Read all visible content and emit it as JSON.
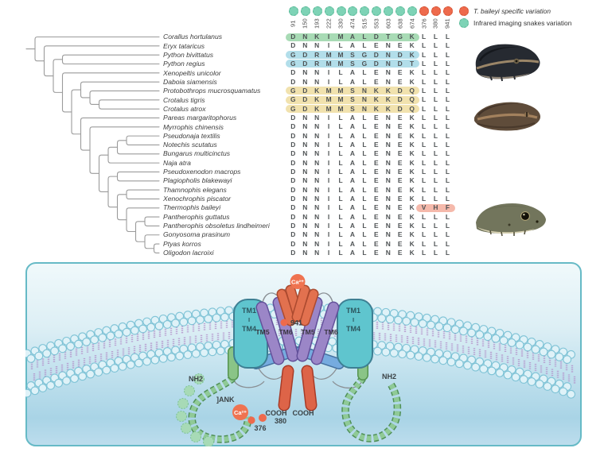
{
  "legend": {
    "items": [
      {
        "label": "T. baileyi specific variation",
        "color": "#ee6a4c",
        "italic": true
      },
      {
        "label": "Infrared imaging snakes variation",
        "color": "#7ed3b6",
        "italic": false
      }
    ]
  },
  "alignment": {
    "positions": [
      "91",
      "150",
      "193",
      "222",
      "330",
      "474",
      "515",
      "553",
      "603",
      "638",
      "674",
      "376",
      "380",
      "941"
    ],
    "position_groups": [
      "infrared",
      "infrared",
      "infrared",
      "infrared",
      "infrared",
      "infrared",
      "infrared",
      "infrared",
      "infrared",
      "infrared",
      "infrared",
      "specific",
      "specific",
      "specific"
    ],
    "highlight_colors": {
      "green": "#a8dbb5",
      "blue": "#b2deea",
      "yellow": "#f1e2ae",
      "pink": "#f5b9ab"
    },
    "rows": [
      {
        "species": "Corallus hortulanus",
        "residues": "DNKIMALDTGKLLL",
        "highlight": "green",
        "span": [
          0,
          10
        ]
      },
      {
        "species": "Eryx tataricus",
        "residues": "DNNILALENEKLLL",
        "highlight": null,
        "span": null
      },
      {
        "species": "Python bivittatus",
        "residues": "GDRMMSGDNDKLLL",
        "highlight": "blue",
        "span": [
          0,
          10
        ]
      },
      {
        "species": "Python regius",
        "residues": "GDRMMSGDNDTLLL",
        "highlight": "blue",
        "span": [
          0,
          10
        ]
      },
      {
        "species": "Xenopeltis unicolor",
        "residues": "DNNILALENEKLLL",
        "highlight": null,
        "span": null
      },
      {
        "species": "Daboia siamensis",
        "residues": "DNNILALENEKLLL",
        "highlight": null,
        "span": null
      },
      {
        "species": "Protobothrops mucrosquamatus",
        "residues": "GDKMMSNKKDQLLL",
        "highlight": "yellow",
        "span": [
          0,
          10
        ]
      },
      {
        "species": "Crotalus tigris",
        "residues": "GDKMMSNKKDQLLL",
        "highlight": "yellow",
        "span": [
          0,
          10
        ]
      },
      {
        "species": "Crotalus atrox",
        "residues": "GDKMMSNKKDQLLL",
        "highlight": "yellow",
        "span": [
          0,
          10
        ]
      },
      {
        "species": "Pareas margaritophorus",
        "residues": "DNNILALENEKLLL",
        "highlight": null,
        "span": null
      },
      {
        "species": "Myrrophis chinensis",
        "residues": "DNNILALENEKLLL",
        "highlight": null,
        "span": null
      },
      {
        "species": "Pseudonaja textilis",
        "residues": "DNNILALENEKLLL",
        "highlight": null,
        "span": null
      },
      {
        "species": "Notechis scutatus",
        "residues": "DNNILALENEKLLL",
        "highlight": null,
        "span": null
      },
      {
        "species": "Bungarus multicinctus",
        "residues": "DNNILALENEKLLL",
        "highlight": null,
        "span": null
      },
      {
        "species": "Naja atra",
        "residues": "DNNILALENEKLLL",
        "highlight": null,
        "span": null
      },
      {
        "species": "Pseudoxenodon macrops",
        "residues": "DNNILALENEKLLL",
        "highlight": null,
        "span": null
      },
      {
        "species": "Plagiopholis blakewayi",
        "residues": "DNNILALENEKLLL",
        "highlight": null,
        "span": null
      },
      {
        "species": "Thamnophis elegans",
        "residues": "DNNILALENEKLLL",
        "highlight": null,
        "span": null
      },
      {
        "species": "Xenochrophis piscator",
        "residues": "DNNILALENEKLLL",
        "highlight": null,
        "span": null
      },
      {
        "species": "Thermophis baileyi",
        "residues": "DNNILALENEKVHF",
        "highlight": "pink",
        "span": [
          11,
          13
        ]
      },
      {
        "species": "Pantherophis guttatus",
        "residues": "DNNILALENEKLLL",
        "highlight": null,
        "span": null
      },
      {
        "species": "Pantherophis obsoletus lindheimeri",
        "residues": "DNNILALENEKLLL",
        "highlight": null,
        "span": null
      },
      {
        "species": "Gonyosoma prasinum",
        "residues": "DNNILALENEKLLL",
        "highlight": null,
        "span": null
      },
      {
        "species": "Ptyas korros",
        "residues": "DNNILALENEKLLL",
        "highlight": null,
        "span": null
      },
      {
        "species": "Oligodon lacroixi",
        "residues": "DNNILALENEKLLL",
        "highlight": null,
        "span": null
      }
    ]
  },
  "phylogeny": [
    0,
    [
      1,
      [
        [
          2,
          3
        ],
        [
          4,
          [
            [
              5,
              [
                6,
                [
                  7,
                  8
                ]
              ]
            ],
            [
              9,
              [
                10,
                [
                  [
                    [
                      [
                        11,
                        12
                      ],
                      13
                    ],
                    14
                  ],
                  [
                    [
                      15,
                      16
                    ],
                    [
                      [
                        17,
                        18
                      ],
                      [
                        19,
                        [
                          [
                            20,
                            21
                          ],
                          [
                            22,
                            [
                              23,
                              24
                            ]
                          ]
                        ]
                      ]
                    ]
                  ]
                ]
              ]
            ]
          ]
        ]
      ]
    ]
  ],
  "diagram": {
    "labels": {
      "ca": "Ca²⁺",
      "p941": "941",
      "tm1": "TM1",
      "sep": "I",
      "tm4": "TM4",
      "tm5": "TM5",
      "tm6": "TM6",
      "cooh": "COOH",
      "nh2": "NH2",
      "ank": "]ANK",
      "p376": "376",
      "p380": "380"
    }
  }
}
